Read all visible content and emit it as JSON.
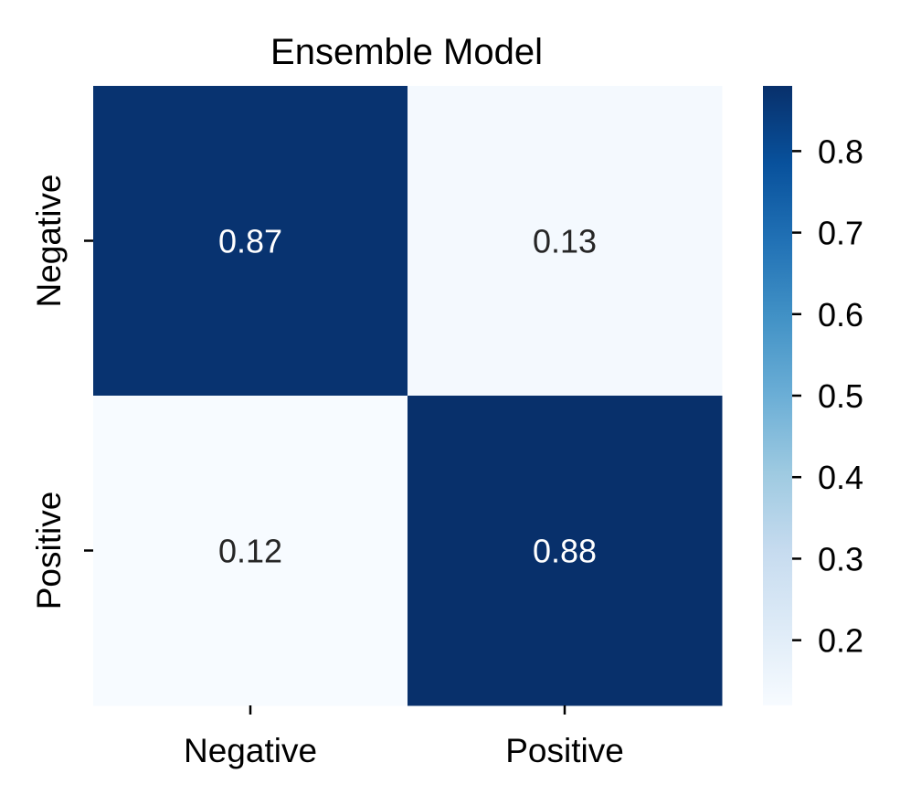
{
  "chart_data": {
    "type": "heatmap",
    "title": "Ensemble Model",
    "x_categories": [
      "Negative",
      "Positive"
    ],
    "y_categories": [
      "Negative",
      "Positive"
    ],
    "values": [
      [
        0.87,
        0.13
      ],
      [
        0.12,
        0.88
      ]
    ],
    "cell_labels": [
      [
        "0.87",
        "0.13"
      ],
      [
        "0.12",
        "0.88"
      ]
    ],
    "colormap": "Blues",
    "colorbar": {
      "min": 0.12,
      "max": 0.88,
      "ticks": [
        0.2,
        0.3,
        0.4,
        0.5,
        0.6,
        0.7,
        0.8
      ],
      "tick_labels": [
        "0.2",
        "0.3",
        "0.4",
        "0.5",
        "0.6",
        "0.7",
        "0.8"
      ]
    },
    "grid": false,
    "colors": {
      "dark": "#08306b",
      "light": "#f7fbff",
      "text_on_dark": "#ffffff",
      "text_on_light": "#262626"
    }
  }
}
